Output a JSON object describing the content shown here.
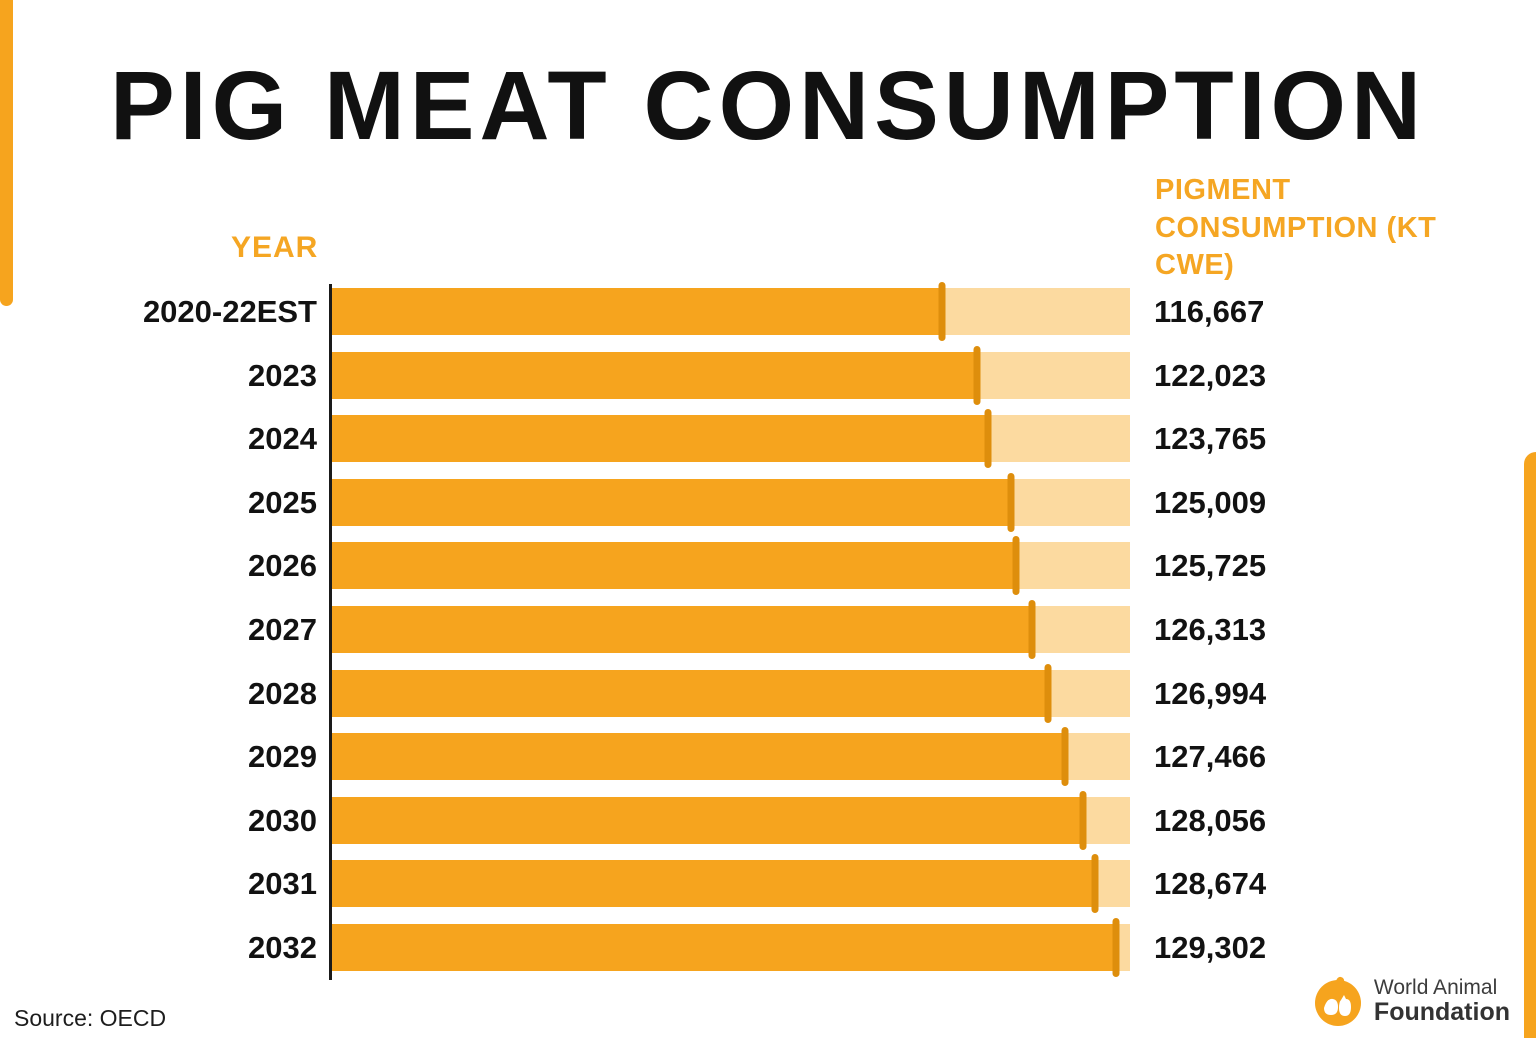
{
  "page": {
    "title": "PIG MEAT CONSUMPTION",
    "source": "Source: OECD",
    "logo": {
      "line1": "World Animal",
      "line2": "Foundation"
    }
  },
  "chart_data": {
    "type": "bar",
    "orientation": "horizontal",
    "title": "PIG MEAT CONSUMPTION",
    "category_header": "YEAR",
    "value_header": "PIGMENT CONSUMPTION (KT CWE)",
    "categories": [
      "2020-22EST",
      "2023",
      "2024",
      "2025",
      "2026",
      "2027",
      "2028",
      "2029",
      "2030",
      "2031",
      "2032"
    ],
    "values": [
      116667,
      122023,
      123765,
      125009,
      125725,
      126313,
      126994,
      127466,
      128056,
      128674,
      129302
    ],
    "value_labels": [
      "116,667",
      "122,023",
      "123,765",
      "125,009",
      "125,725",
      "126,313",
      "126,994",
      "127,466",
      "128,056",
      "128,674",
      "129,302"
    ],
    "bar_fill_pct_of_track": [
      76.4,
      80.8,
      82.2,
      85.1,
      85.7,
      87.7,
      89.7,
      91.9,
      94.1,
      95.6,
      98.2
    ],
    "grid": false,
    "legend": false,
    "colors": {
      "bar_fill": "#F6A41E",
      "bar_track": "#FCDAA0",
      "bar_end_tick": "#DE8E0C",
      "header_text": "#F5A623",
      "label_text": "#121212"
    }
  }
}
